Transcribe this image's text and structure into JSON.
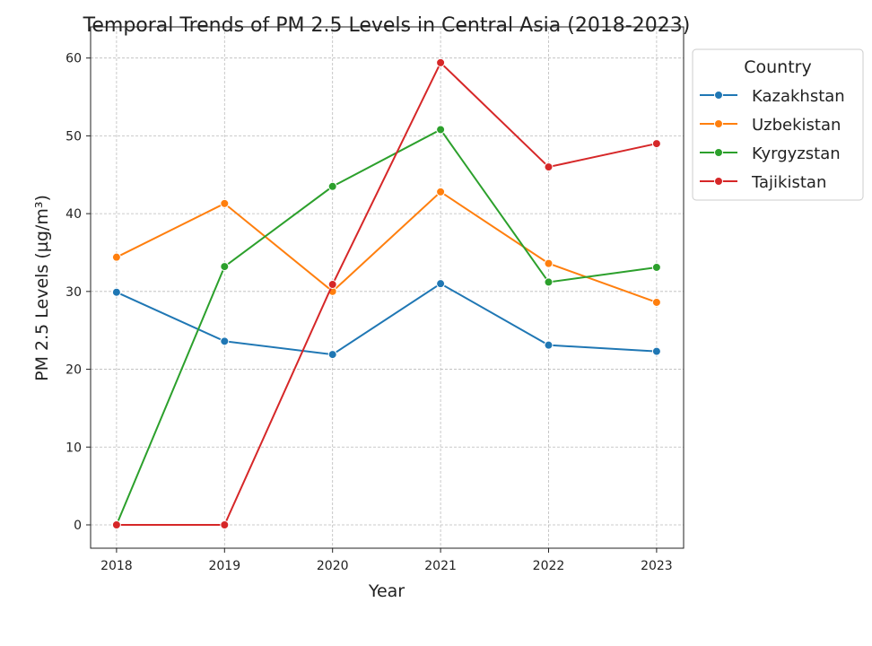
{
  "chart_data": {
    "type": "line",
    "title": "Temporal Trends of PM 2.5 Levels in Central Asia (2018-2023)",
    "xlabel": "Year",
    "ylabel": "PM 2.5 Levels (µg/m³)",
    "x": [
      2018,
      2019,
      2020,
      2021,
      2022,
      2023
    ],
    "x_tick_labels": [
      "2018",
      "2019",
      "2020",
      "2021",
      "2022",
      "2023"
    ],
    "y_ticks": [
      0,
      10,
      20,
      30,
      40,
      50,
      60
    ],
    "y_tick_labels": [
      "0",
      "10",
      "20",
      "30",
      "40",
      "50",
      "60"
    ],
    "xlim": [
      2017.76,
      2023.25
    ],
    "ylim": [
      -3,
      64
    ],
    "grid": true,
    "legend": {
      "title": "Country",
      "placement": "outside-top-right"
    },
    "series": [
      {
        "name": "Kazakhstan",
        "color": "#1f77b4",
        "values": [
          29.9,
          23.6,
          21.9,
          31.0,
          23.1,
          22.3
        ]
      },
      {
        "name": "Uzbekistan",
        "color": "#ff7f0e",
        "values": [
          34.4,
          41.3,
          30.0,
          42.8,
          33.6,
          28.6
        ]
      },
      {
        "name": "Kyrgyzstan",
        "color": "#2ca02c",
        "values": [
          0,
          33.2,
          43.5,
          50.8,
          31.2,
          33.1
        ]
      },
      {
        "name": "Tajikistan",
        "color": "#d62728",
        "values": [
          0,
          0,
          30.9,
          59.4,
          46.0,
          49.0
        ]
      }
    ]
  }
}
